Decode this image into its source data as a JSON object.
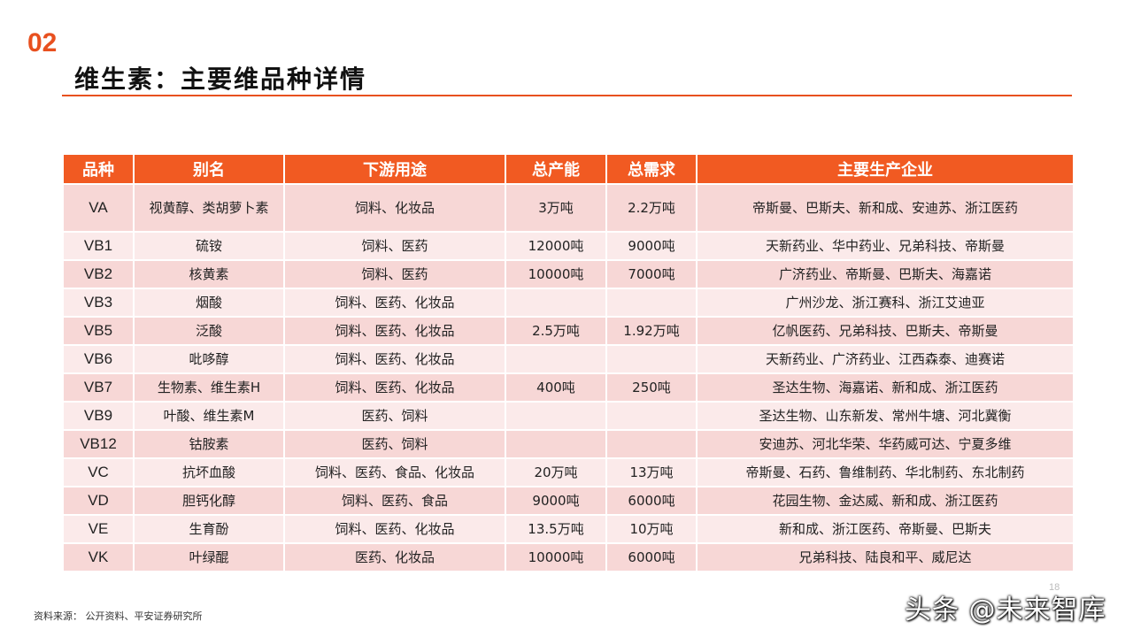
{
  "header": {
    "section_number": "02",
    "title": "维生素：主要维品种详情"
  },
  "table": {
    "headers": [
      "品种",
      "别名",
      "下游用途",
      "总产能",
      "总需求",
      "主要生产企业"
    ],
    "rows": [
      [
        "VA",
        "视黄醇、类胡萝卜素",
        "饲料、化妆品",
        "3万吨",
        "2.2万吨",
        "帝斯曼、巴斯夫、新和成、安迪苏、浙江医药"
      ],
      [
        "VB1",
        "硫铵",
        "饲料、医药",
        "12000吨",
        "9000吨",
        "天新药业、华中药业、兄弟科技、帝斯曼"
      ],
      [
        "VB2",
        "核黄素",
        "饲料、医药",
        "10000吨",
        "7000吨",
        "广济药业、帝斯曼、巴斯夫、海嘉诺"
      ],
      [
        "VB3",
        "烟酸",
        "饲料、医药、化妆品",
        "",
        "",
        "广州沙龙、浙江赛科、浙江艾迪亚"
      ],
      [
        "VB5",
        "泛酸",
        "饲料、医药、化妆品",
        "2.5万吨",
        "1.92万吨",
        "亿帆医药、兄弟科技、巴斯夫、帝斯曼"
      ],
      [
        "VB6",
        "吡哆醇",
        "饲料、医药、化妆品",
        "",
        "",
        "天新药业、广济药业、江西森泰、迪赛诺"
      ],
      [
        "VB7",
        "生物素、维生素H",
        "饲料、医药、化妆品",
        "400吨",
        "250吨",
        "圣达生物、海嘉诺、新和成、浙江医药"
      ],
      [
        "VB9",
        "叶酸、维生素M",
        "医药、饲料",
        "",
        "",
        "圣达生物、山东新发、常州牛塘、河北冀衡"
      ],
      [
        "VB12",
        "钴胺素",
        "医药、饲料",
        "",
        "",
        "安迪苏、河北华荣、华药威可达、宁夏多维"
      ],
      [
        "VC",
        "抗坏血酸",
        "饲料、医药、食品、化妆品",
        "20万吨",
        "13万吨",
        "帝斯曼、石药、鲁维制药、华北制药、东北制药"
      ],
      [
        "VD",
        "胆钙化醇",
        "饲料、医药、食品",
        "9000吨",
        "6000吨",
        "花园生物、金达威、新和成、浙江医药"
      ],
      [
        "VE",
        "生育酚",
        "饲料、医药、化妆品",
        "13.5万吨",
        "10万吨",
        "新和成、浙江医药、帝斯曼、巴斯夫"
      ],
      [
        "VK",
        "叶绿醌",
        "医药、化妆品",
        "10000吨",
        "6000吨",
        "兄弟科技、陆良和平、威尼达"
      ]
    ]
  },
  "footer": {
    "source": "资料来源： 公开资料、平安证券研究所",
    "page_number": "18",
    "watermark": "头条 @未来智库"
  },
  "colors": {
    "accent": "#e8501f",
    "header_bg": "#f15a22",
    "row_dark": "#f7d7d6",
    "row_light": "#fbeaea"
  }
}
